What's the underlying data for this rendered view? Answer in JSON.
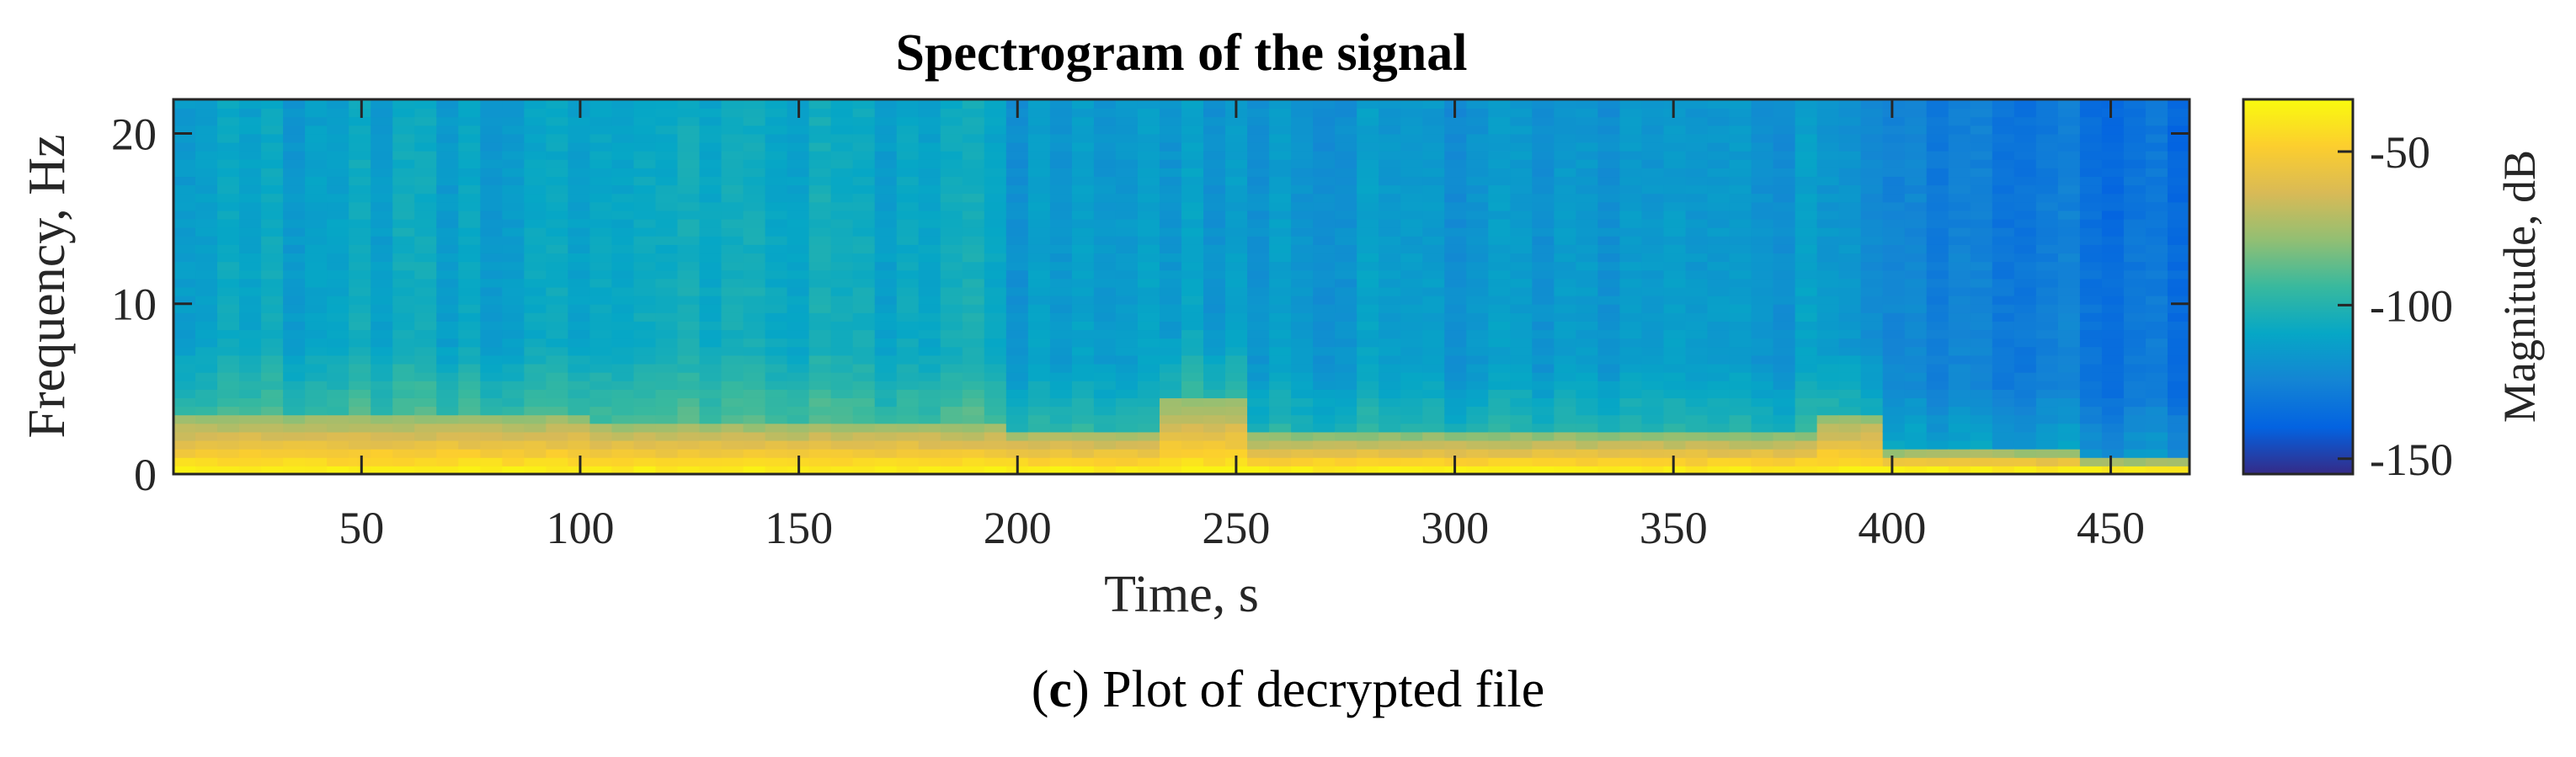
{
  "chart_data": {
    "type": "heatmap",
    "title": "Spectrogram of the signal",
    "xlabel": "Time, s",
    "ylabel": "Frequency, Hz",
    "xlim": [
      7,
      468
    ],
    "ylim": [
      0,
      22
    ],
    "xticks": [
      50,
      100,
      150,
      200,
      250,
      300,
      350,
      400,
      450
    ],
    "yticks": [
      0,
      10,
      20
    ],
    "colorbar": {
      "label": "Magnitude, dB",
      "range": [
        -155,
        -33
      ],
      "ticks": [
        -50,
        -100,
        -150
      ],
      "colormap": "parula",
      "stops": [
        "#352a87",
        "#0363e1",
        "#1485d4",
        "#06a7c6",
        "#38b99e",
        "#92bf73",
        "#d9ba56",
        "#fcce2e",
        "#f9fb0e"
      ]
    },
    "time_segments": [
      {
        "t": [
          7,
          100
        ],
        "low_band_top_hz": 3.5,
        "background_db": -108
      },
      {
        "t": [
          100,
          195
        ],
        "low_band_top_hz": 3.0,
        "background_db": -106
      },
      {
        "t": [
          195,
          230
        ],
        "low_band_top_hz": 2.5,
        "background_db": -112
      },
      {
        "t": [
          230,
          250
        ],
        "low_band_top_hz": 4.5,
        "background_db": -112
      },
      {
        "t": [
          250,
          380
        ],
        "low_band_top_hz": 2.2,
        "background_db": -114
      },
      {
        "t": [
          380,
          395
        ],
        "low_band_top_hz": 3.5,
        "background_db": -118
      },
      {
        "t": [
          395,
          440
        ],
        "low_band_top_hz": 1.2,
        "background_db": -125
      },
      {
        "t": [
          440,
          468
        ],
        "low_band_top_hz": 0.6,
        "background_db": -130
      }
    ],
    "low_band_peak_db": -38,
    "grid": false
  },
  "caption": {
    "label": "c",
    "text": " Plot of decrypted file"
  }
}
